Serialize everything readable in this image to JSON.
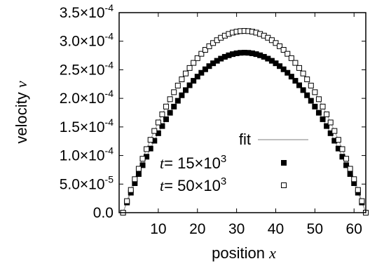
{
  "chart_data": {
    "type": "scatter",
    "xlabel_text": "position",
    "xlabel_var": "x",
    "ylabel_text": "velocity",
    "ylabel_var": "v",
    "xlim": [
      0,
      63
    ],
    "ylim": [
      0,
      0.00035
    ],
    "x_ticks": [
      10,
      20,
      30,
      40,
      50,
      60
    ],
    "y_ticks": [
      {
        "value": 0,
        "mant": "0.0",
        "exp": ""
      },
      {
        "value": 5e-05,
        "mant": "5.0×10",
        "exp": "-5"
      },
      {
        "value": 0.0001,
        "mant": "1.0×10",
        "exp": "-4"
      },
      {
        "value": 0.00015,
        "mant": "1.5×10",
        "exp": "-4"
      },
      {
        "value": 0.0002,
        "mant": "2.0×10",
        "exp": "-4"
      },
      {
        "value": 0.00025,
        "mant": "2.5×10",
        "exp": "-4"
      },
      {
        "value": 0.0003,
        "mant": "3.0×10",
        "exp": "-4"
      },
      {
        "value": 0.00035,
        "mant": "3.5×10",
        "exp": "-4"
      }
    ],
    "x_range": [
      1,
      63
    ],
    "legend_position": "right-middle",
    "legend": [
      {
        "label": "fit",
        "kind": "line"
      },
      {
        "var": "t",
        "label_mid": "= 15×10",
        "exp": "3",
        "kind": "filled-square"
      },
      {
        "var": "t",
        "label_mid": "= 50×10",
        "exp": "3",
        "kind": "open-square"
      }
    ],
    "series": [
      {
        "peak": 0.00028,
        "marker": "filled-square"
      },
      {
        "peak": 0.000318,
        "marker": "open-square"
      }
    ],
    "fit_color": "#999999"
  }
}
